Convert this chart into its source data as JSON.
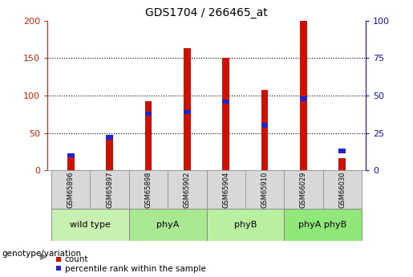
{
  "title": "GDS1704 / 266465_at",
  "samples": [
    "GSM65896",
    "GSM65897",
    "GSM65898",
    "GSM65902",
    "GSM65904",
    "GSM65910",
    "GSM66029",
    "GSM66030"
  ],
  "counts": [
    18,
    45,
    92,
    163,
    150,
    108,
    200,
    16
  ],
  "percentiles": [
    10,
    22,
    38,
    39,
    46,
    30,
    48,
    13
  ],
  "groups": [
    {
      "label": "wild type",
      "start": 0,
      "end": 2,
      "color": "#c8f0b0"
    },
    {
      "label": "phyA",
      "start": 2,
      "end": 4,
      "color": "#a8e890"
    },
    {
      "label": "phyB",
      "start": 4,
      "end": 6,
      "color": "#b8f0a0"
    },
    {
      "label": "phyA phyB",
      "start": 6,
      "end": 8,
      "color": "#90e878"
    }
  ],
  "bar_color": "#cc1100",
  "percentile_color": "#2222cc",
  "left_axis_color": "#cc2200",
  "right_axis_color": "#1111bb",
  "left_ylim": [
    0,
    200
  ],
  "right_ylim": [
    0,
    100
  ],
  "left_yticks": [
    0,
    50,
    100,
    150,
    200
  ],
  "right_yticks": [
    0,
    25,
    50,
    75,
    100
  ],
  "grid_yticks": [
    50,
    100,
    150
  ],
  "red_bar_width": 0.18,
  "blue_bar_width": 0.18,
  "bg_color": "#d8d8d8",
  "legend_count_label": "count",
  "legend_percentile_label": "percentile rank within the sample",
  "genotype_label": "genotype/variation"
}
